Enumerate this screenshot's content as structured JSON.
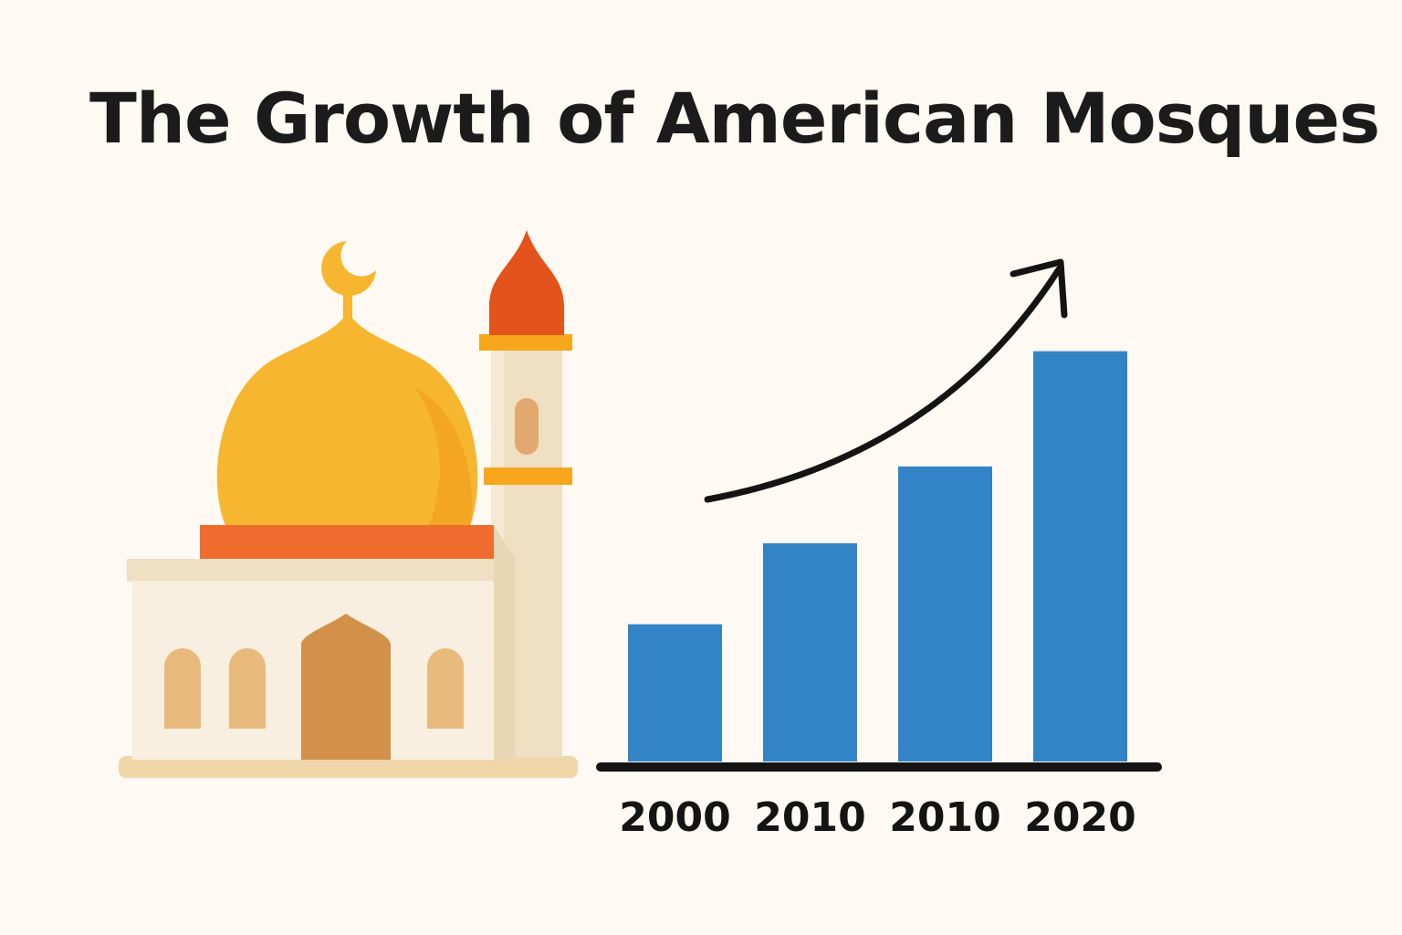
{
  "title": "The Growth of American Mosques",
  "icons": {
    "mosque": "mosque-icon",
    "crescent": "crescent-icon",
    "trend": "trend-arrow-icon"
  },
  "colors": {
    "background": "#fefaf3",
    "bar": "#3384c7",
    "axis": "#141414",
    "dome": "#f6b62f",
    "dome_band": "#ef6c2e",
    "minaret_cap": "#e4531b",
    "walls": "#f3e8d1",
    "door": "#d2904a",
    "windows": "#e8bb7c"
  },
  "chart_data": {
    "type": "bar",
    "title": "The Growth of American Mosques",
    "categories": [
      "2000",
      "2010",
      "2010",
      "2020"
    ],
    "values": [
      1.0,
      1.59,
      2.15,
      2.99
    ],
    "ylim": [
      0,
      3
    ],
    "xlabel": "",
    "ylabel": "",
    "grid": false,
    "legend": "none",
    "trend_arrow": true
  }
}
